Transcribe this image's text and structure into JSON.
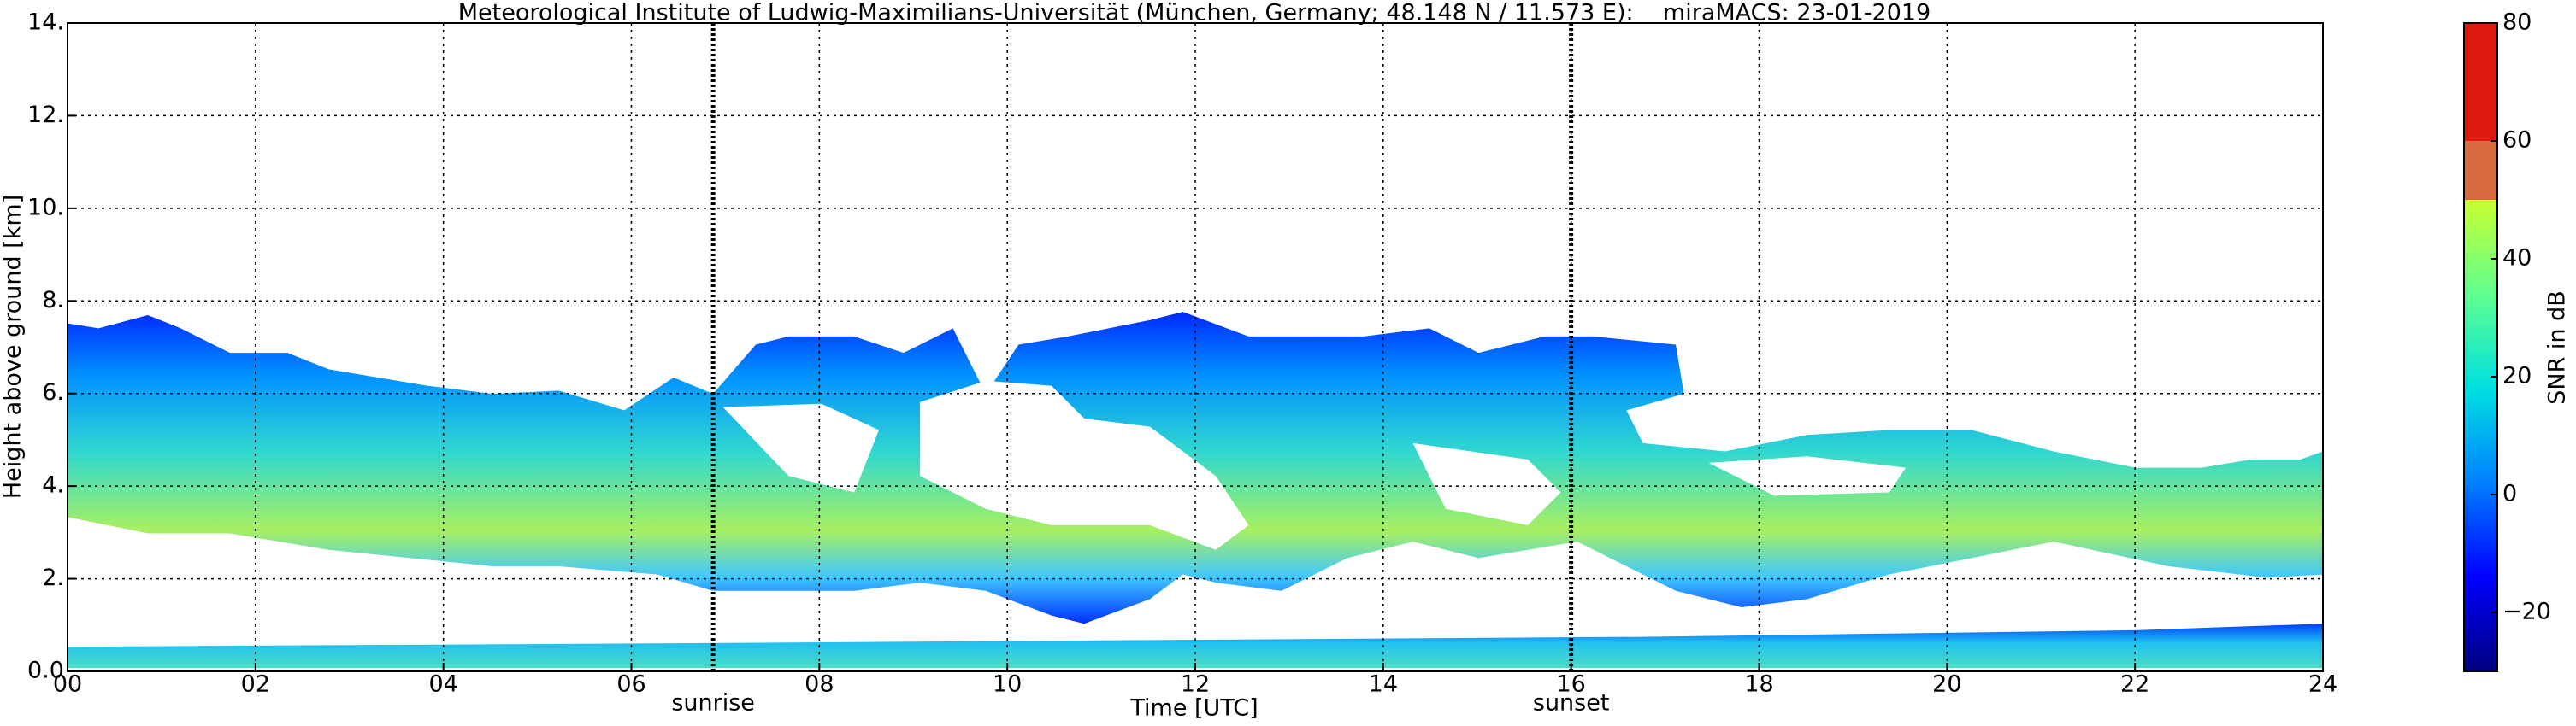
{
  "chart_data": {
    "type": "heatmap",
    "title": "Meteorological Institute of Ludwig-Maximilians-Universität (München, Germany; 48.148 N / 11.573 E):    miraMACS: 23-01-2019",
    "x_label": "Time [UTC]",
    "y_label": "Height above ground [km]",
    "xlim": [
      0,
      24
    ],
    "xticks": [
      {
        "value": 0,
        "label": "00"
      },
      {
        "value": 2,
        "label": "02"
      },
      {
        "value": 4,
        "label": "04"
      },
      {
        "value": 6,
        "label": "06"
      },
      {
        "value": 8,
        "label": "08"
      },
      {
        "value": 10,
        "label": "10"
      },
      {
        "value": 12,
        "label": "12"
      },
      {
        "value": 14,
        "label": "14"
      },
      {
        "value": 16,
        "label": "16"
      },
      {
        "value": 18,
        "label": "18"
      },
      {
        "value": 20,
        "label": "20"
      },
      {
        "value": 22,
        "label": "22"
      },
      {
        "value": 24,
        "label": "24"
      }
    ],
    "ylim": [
      0,
      14
    ],
    "yticks": [
      {
        "value": 0,
        "label": "0.0"
      },
      {
        "value": 2,
        "label": "2."
      },
      {
        "value": 4,
        "label": "4."
      },
      {
        "value": 6,
        "label": "6."
      },
      {
        "value": 8,
        "label": "8."
      },
      {
        "value": 10,
        "label": "10."
      },
      {
        "value": 12,
        "label": "12."
      },
      {
        "value": 14,
        "label": "14."
      }
    ],
    "grid": true,
    "annotations": [
      {
        "text": "sunrise",
        "x": 6.87
      },
      {
        "text": "sunset",
        "x": 16.0
      }
    ],
    "colorbar": {
      "label": "SNR in dB",
      "lim": [
        -30,
        80
      ],
      "ticks": [
        {
          "value": -20,
          "label": "−20"
        },
        0,
        20,
        40,
        60,
        80
      ],
      "bands": [
        {
          "from": -30,
          "to": 50,
          "colors": [
            "#00007f",
            "#0000ff",
            "#0080ff",
            "#00e0e0",
            "#60ff90",
            "#c8ff30"
          ]
        },
        {
          "from": 50,
          "to": 60,
          "color": "#d86a40"
        },
        {
          "from": 60,
          "to": 80,
          "color": "#dd1a10"
        }
      ]
    }
  }
}
